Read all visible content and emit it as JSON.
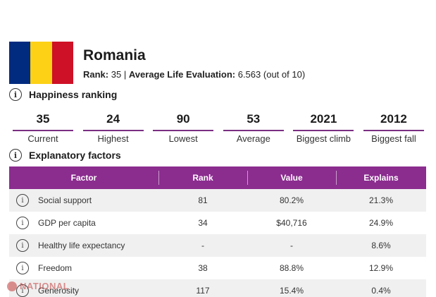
{
  "header": {
    "country": "Romania",
    "rank_label": "Rank:",
    "rank_value": "35",
    "separator": "|",
    "life_eval_label": "Average Life Evaluation:",
    "life_eval_value": "6.563",
    "life_eval_suffix": "(out of 10)",
    "flag_colors": [
      "#002b7f",
      "#fcd116",
      "#ce1126"
    ]
  },
  "sections": {
    "happiness_ranking": "Happiness ranking",
    "explanatory_factors": "Explanatory factors",
    "info_glyph": "i"
  },
  "ranking": [
    {
      "value": "35",
      "label": "Current"
    },
    {
      "value": "24",
      "label": "Highest"
    },
    {
      "value": "90",
      "label": "Lowest"
    },
    {
      "value": "53",
      "label": "Average"
    },
    {
      "value": "2021",
      "label": "Biggest climb"
    },
    {
      "value": "2012",
      "label": "Biggest fall"
    }
  ],
  "table": {
    "headers": [
      "Factor",
      "Rank",
      "Value",
      "Explains"
    ],
    "rows": [
      {
        "factor": "Social support",
        "rank": "81",
        "value": "80.2%",
        "explains": "21.3%"
      },
      {
        "factor": "GDP per capita",
        "rank": "34",
        "value": "$40,716",
        "explains": "24.9%"
      },
      {
        "factor": "Healthy life expectancy",
        "rank": "-",
        "value": "-",
        "explains": "8.6%"
      },
      {
        "factor": "Freedom",
        "rank": "38",
        "value": "88.8%",
        "explains": "12.9%"
      },
      {
        "factor": "Generosity",
        "rank": "117",
        "value": "15.4%",
        "explains": "0.4%"
      }
    ]
  },
  "watermark": "NATIONAL",
  "colors": {
    "accent": "#8b2c8f",
    "row_alt": "#f0f0f0"
  }
}
